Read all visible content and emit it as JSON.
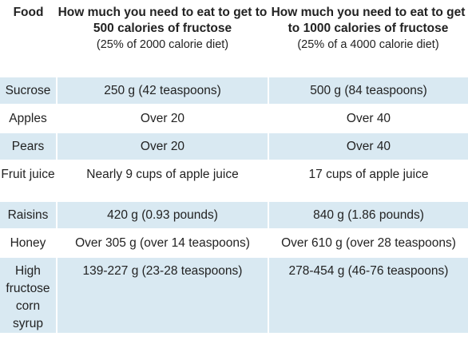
{
  "header": {
    "food": "Food",
    "col1_title": "How much you need to eat to get to 500 calories of fructose",
    "col1_sub": "(25% of 2000 calorie diet)",
    "col2_title": "How much you need to eat to get to 1000 calories of fructose",
    "col2_sub": "(25% of a 4000 calorie diet)"
  },
  "rows": [
    {
      "food": "Sucrose",
      "v500": "250 g (42 teaspoons)",
      "v1000": "500 g (84 teaspoons)"
    },
    {
      "food": "Apples",
      "v500": "Over 20",
      "v1000": "Over 40"
    },
    {
      "food": "Pears",
      "v500": "Over 20",
      "v1000": "Over 40"
    },
    {
      "food": "Fruit juice",
      "v500": "Nearly 9 cups of apple juice",
      "v1000": "17 cups of apple juice"
    },
    {
      "food": "Raisins",
      "v500": "420 g (0.93 pounds)",
      "v1000": "840 g (1.86 pounds)"
    },
    {
      "food": "Honey",
      "v500": "Over 305 g (over 14 teaspoons)",
      "v1000": "Over 610 g (over 28 teaspoons)"
    },
    {
      "food": "High fructose corn syrup",
      "v500": "139-227 g (23-28 teaspoons)",
      "v1000": "278-454 g (46-76 teaspoons)"
    }
  ],
  "colors": {
    "row_shade": "#d9e9f2",
    "text": "#222222"
  }
}
